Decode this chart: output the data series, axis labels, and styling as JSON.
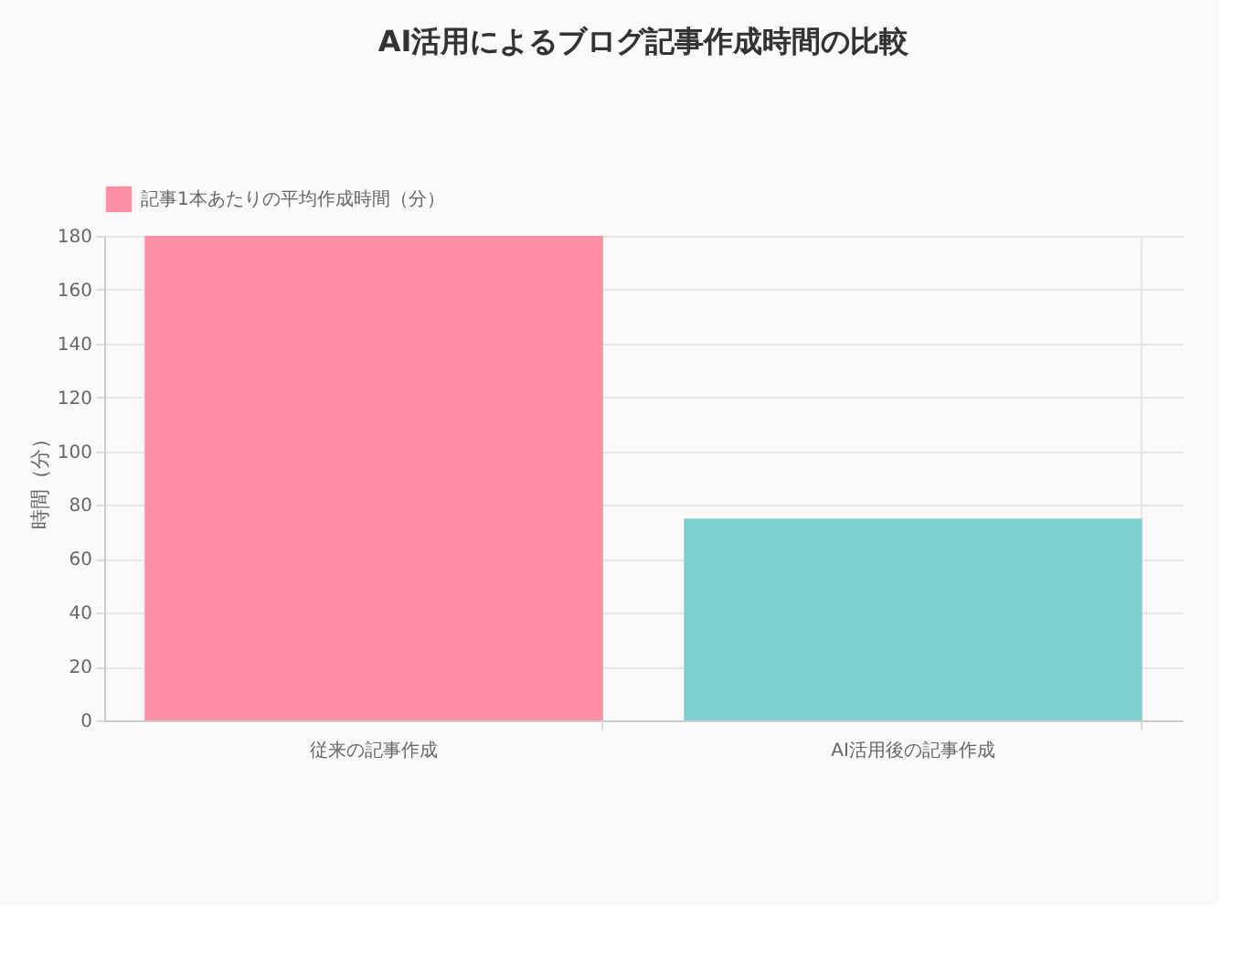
{
  "chart_data": {
    "type": "bar",
    "title": "AI活用によるブログ記事作成時間の比較",
    "ylabel": "時間（分）",
    "categories": [
      "従来の記事作成",
      "AI活用後の記事作成"
    ],
    "series": [
      {
        "name": "記事1本あたりの平均作成時間（分）",
        "colors": [
          "#ff8fa3",
          "#7fd0d0"
        ],
        "values": [
          180,
          75
        ]
      }
    ],
    "ylim": [
      0,
      180
    ],
    "yticks": [
      0,
      20,
      40,
      60,
      80,
      100,
      120,
      140,
      160,
      180
    ],
    "grid": true,
    "legend": "top"
  }
}
